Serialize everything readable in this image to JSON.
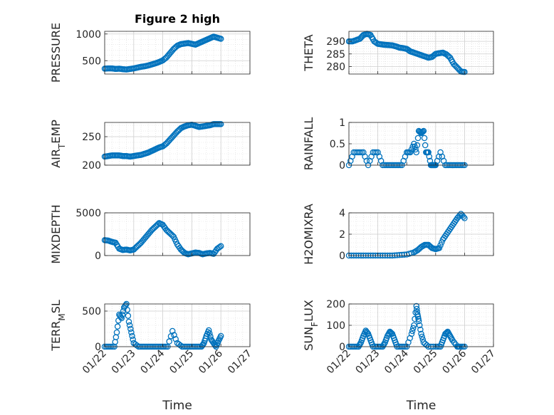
{
  "chart_data": {
    "type": "scatter",
    "title": "Figure 2 high",
    "colors": {
      "marker": "#0072BD",
      "axis": "#262626",
      "grid": "#d9d9d9"
    },
    "date_ticks": [
      "01/22",
      "01/23",
      "01/24",
      "01/25",
      "01/26",
      "01/27"
    ],
    "date_tick_values": [
      "2000-01-22",
      "2000-01-23",
      "2000-01-24",
      "2000-01-25",
      "2000-01-26",
      "2000-01-27"
    ],
    "grid": true,
    "panels": [
      {
        "id": "pressure",
        "ylabel": "PRESSURE",
        "ylim": [
          250,
          1050
        ],
        "yticks": [
          500,
          1000
        ],
        "show_x_ticks": false,
        "series": [
          {
            "x": [
              "2000-01-22T00",
              "2000-01-22T03",
              "2000-01-22T06",
              "2000-01-22T09",
              "2000-01-22T12",
              "2000-01-22T15",
              "2000-01-22T18",
              "2000-01-22T21",
              "2000-01-23T00",
              "2000-01-23T03",
              "2000-01-23T06",
              "2000-01-23T09",
              "2000-01-23T12",
              "2000-01-23T15",
              "2000-01-23T18",
              "2000-01-23T21",
              "2000-01-24T00",
              "2000-01-24T03",
              "2000-01-24T06",
              "2000-01-24T09",
              "2000-01-24T12",
              "2000-01-24T15",
              "2000-01-24T18",
              "2000-01-24T21",
              "2000-01-25T00",
              "2000-01-25T03",
              "2000-01-25T06",
              "2000-01-25T09",
              "2000-01-25T12",
              "2000-01-25T15",
              "2000-01-25T18",
              "2000-01-25T21",
              "2000-01-26T00"
            ],
            "y": [
              350,
              355,
              355,
              345,
              350,
              340,
              335,
              345,
              355,
              370,
              385,
              395,
              410,
              430,
              450,
              475,
              505,
              560,
              640,
              720,
              780,
              810,
              820,
              830,
              815,
              800,
              830,
              860,
              890,
              920,
              950,
              930,
              910
            ]
          }
        ]
      },
      {
        "id": "theta",
        "ylabel": "THETA",
        "ylim": [
          277,
          294
        ],
        "yticks": [
          280,
          285,
          290
        ],
        "show_x_ticks": false,
        "series": [
          {
            "x": [
              "2000-01-22T00",
              "2000-01-22T03",
              "2000-01-22T06",
              "2000-01-22T09",
              "2000-01-22T12",
              "2000-01-22T15",
              "2000-01-22T18",
              "2000-01-22T21",
              "2000-01-23T00",
              "2000-01-23T03",
              "2000-01-23T06",
              "2000-01-23T09",
              "2000-01-23T12",
              "2000-01-23T15",
              "2000-01-23T18",
              "2000-01-23T21",
              "2000-01-24T00",
              "2000-01-24T03",
              "2000-01-24T06",
              "2000-01-24T09",
              "2000-01-24T12",
              "2000-01-24T15",
              "2000-01-24T18",
              "2000-01-24T21",
              "2000-01-25T00",
              "2000-01-25T03",
              "2000-01-25T06",
              "2000-01-25T09",
              "2000-01-25T12",
              "2000-01-25T15",
              "2000-01-25T18",
              "2000-01-25T21",
              "2000-01-26T00"
            ],
            "y": [
              290,
              290,
              290.5,
              291,
              292.5,
              293,
              292.5,
              290,
              289,
              288.8,
              288.6,
              288.5,
              288.4,
              288,
              287.5,
              287.3,
              287,
              286,
              285.5,
              285,
              284.5,
              284,
              283.5,
              283.8,
              285,
              285.3,
              285.5,
              284.8,
              283.5,
              281,
              279.5,
              278,
              277.8
            ]
          }
        ]
      },
      {
        "id": "air_temp",
        "ylabel": "AIR_TEMP",
        "ylim": [
          200,
          275
        ],
        "yticks": [
          200,
          250
        ],
        "show_x_ticks": false,
        "series": [
          {
            "x": [
              "2000-01-22T00",
              "2000-01-22T03",
              "2000-01-22T06",
              "2000-01-22T09",
              "2000-01-22T12",
              "2000-01-22T15",
              "2000-01-22T18",
              "2000-01-22T21",
              "2000-01-23T00",
              "2000-01-23T03",
              "2000-01-23T06",
              "2000-01-23T09",
              "2000-01-23T12",
              "2000-01-23T15",
              "2000-01-23T18",
              "2000-01-23T21",
              "2000-01-24T00",
              "2000-01-24T03",
              "2000-01-24T06",
              "2000-01-24T09",
              "2000-01-24T12",
              "2000-01-24T15",
              "2000-01-24T18",
              "2000-01-24T21",
              "2000-01-25T00",
              "2000-01-25T03",
              "2000-01-25T06",
              "2000-01-25T09",
              "2000-01-25T12",
              "2000-01-25T15",
              "2000-01-25T18",
              "2000-01-25T21",
              "2000-01-26T00"
            ],
            "y": [
              215,
              216,
              217,
              217,
              217,
              216,
              216,
              215,
              216,
              217,
              218,
              220,
              222,
              225,
              228,
              231,
              233,
              238,
              245,
              252,
              259,
              265,
              268,
              270,
              271,
              269,
              267,
              268,
              269,
              270,
              272,
              272,
              272
            ]
          }
        ]
      },
      {
        "id": "rainfall",
        "ylabel": "RAINFALL",
        "ylim": [
          0,
          1
        ],
        "yticks": [
          0,
          0.5,
          1
        ],
        "show_x_ticks": false,
        "series": [
          {
            "x": [
              "2000-01-22T00",
              "2000-01-22T04",
              "2000-01-22T08",
              "2000-01-22T12",
              "2000-01-22T16",
              "2000-01-22T20",
              "2000-01-23T00",
              "2000-01-23T04",
              "2000-01-23T08",
              "2000-01-23T12",
              "2000-01-23T16",
              "2000-01-23T20",
              "2000-01-24T00",
              "2000-01-24T03",
              "2000-01-24T06",
              "2000-01-24T08",
              "2000-01-24T10",
              "2000-01-24T12",
              "2000-01-24T14",
              "2000-01-24T16",
              "2000-01-24T18",
              "2000-01-24T20",
              "2000-01-24T22",
              "2000-01-25T00",
              "2000-01-25T04",
              "2000-01-25T08",
              "2000-01-25T12",
              "2000-01-25T16",
              "2000-01-25T20",
              "2000-01-26T00"
            ],
            "y": [
              0,
              0.3,
              0.3,
              0.3,
              0,
              0.3,
              0.3,
              0,
              0,
              0,
              0,
              0,
              0.3,
              0.3,
              0.5,
              0.3,
              0.8,
              0.75,
              0.8,
              0.3,
              0.3,
              0,
              0,
              0,
              0.3,
              0,
              0,
              0,
              0,
              0
            ]
          }
        ]
      },
      {
        "id": "mixdepth",
        "ylabel": "MIXDEPTH",
        "ylim": [
          0,
          5000
        ],
        "yticks": [
          0,
          5000
        ],
        "show_x_ticks": false,
        "series": [
          {
            "x": [
              "2000-01-22T00",
              "2000-01-22T03",
              "2000-01-22T06",
              "2000-01-22T09",
              "2000-01-22T12",
              "2000-01-22T15",
              "2000-01-22T18",
              "2000-01-22T21",
              "2000-01-23T00",
              "2000-01-23T03",
              "2000-01-23T06",
              "2000-01-23T09",
              "2000-01-23T12",
              "2000-01-23T15",
              "2000-01-23T18",
              "2000-01-23T21",
              "2000-01-24T00",
              "2000-01-24T03",
              "2000-01-24T06",
              "2000-01-24T09",
              "2000-01-24T12",
              "2000-01-24T15",
              "2000-01-24T18",
              "2000-01-24T21",
              "2000-01-25T00",
              "2000-01-25T03",
              "2000-01-25T06",
              "2000-01-25T09",
              "2000-01-25T12",
              "2000-01-25T15",
              "2000-01-25T18",
              "2000-01-25T21",
              "2000-01-26T00"
            ],
            "y": [
              1800,
              1750,
              1600,
              1500,
              800,
              650,
              700,
              600,
              700,
              1100,
              1500,
              2000,
              2500,
              3000,
              3400,
              3800,
              3600,
              3000,
              2600,
              2200,
              1300,
              700,
              300,
              150,
              250,
              350,
              300,
              150,
              250,
              300,
              200,
              800,
              1100
            ]
          }
        ]
      },
      {
        "id": "h2omixra",
        "ylabel": "H2OMIXRA",
        "ylim": [
          0,
          4
        ],
        "yticks": [
          0,
          2,
          4
        ],
        "show_x_ticks": false,
        "series": [
          {
            "x": [
              "2000-01-22T00",
              "2000-01-22T06",
              "2000-01-22T12",
              "2000-01-22T18",
              "2000-01-23T00",
              "2000-01-23T06",
              "2000-01-23T12",
              "2000-01-23T18",
              "2000-01-24T00",
              "2000-01-24T06",
              "2000-01-24T09",
              "2000-01-24T12",
              "2000-01-24T15",
              "2000-01-24T18",
              "2000-01-24T21",
              "2000-01-25T00",
              "2000-01-25T03",
              "2000-01-25T06",
              "2000-01-25T09",
              "2000-01-25T12",
              "2000-01-25T15",
              "2000-01-25T18",
              "2000-01-25T21",
              "2000-01-26T00"
            ],
            "y": [
              0,
              0,
              0,
              0,
              0,
              0,
              0,
              0.05,
              0.1,
              0.3,
              0.5,
              0.8,
              1,
              1,
              0.7,
              0.6,
              0.7,
              1.5,
              2,
              2.5,
              3,
              3.5,
              3.9,
              3.5
            ]
          }
        ]
      },
      {
        "id": "terr_msl",
        "ylabel": "TERR_MSL",
        "ylim": [
          0,
          600
        ],
        "yticks": [
          0,
          500
        ],
        "show_x_ticks": true,
        "series": [
          {
            "x": [
              "2000-01-22T00",
              "2000-01-22T04",
              "2000-01-22T08",
              "2000-01-22T10",
              "2000-01-22T12",
              "2000-01-22T14",
              "2000-01-22T16",
              "2000-01-22T18",
              "2000-01-22T20",
              "2000-01-22T22",
              "2000-01-23T00",
              "2000-01-23T04",
              "2000-01-23T08",
              "2000-01-23T12",
              "2000-01-23T16",
              "2000-01-23T20",
              "2000-01-24T00",
              "2000-01-24T04",
              "2000-01-24T08",
              "2000-01-24T12",
              "2000-01-24T16",
              "2000-01-24T20",
              "2000-01-25T00",
              "2000-01-25T04",
              "2000-01-25T08",
              "2000-01-25T10",
              "2000-01-25T12",
              "2000-01-25T14",
              "2000-01-25T16",
              "2000-01-25T18",
              "2000-01-25T20",
              "2000-01-25T22",
              "2000-01-26T00"
            ],
            "y": [
              0,
              0,
              0,
              200,
              450,
              400,
              550,
              600,
              350,
              200,
              50,
              0,
              0,
              0,
              0,
              0,
              0,
              0,
              220,
              50,
              0,
              0,
              0,
              0,
              0,
              50,
              150,
              230,
              100,
              50,
              0,
              80,
              150
            ]
          }
        ]
      },
      {
        "id": "sun_flux",
        "ylabel": "SUN_FLUX",
        "ylim": [
          0,
          200
        ],
        "yticks": [
          0,
          100,
          200
        ],
        "show_x_ticks": true,
        "series": [
          {
            "x": [
              "2000-01-22T00",
              "2000-01-22T04",
              "2000-01-22T08",
              "2000-01-22T10",
              "2000-01-22T12",
              "2000-01-22T14",
              "2000-01-22T16",
              "2000-01-22T18",
              "2000-01-22T20",
              "2000-01-23T00",
              "2000-01-23T04",
              "2000-01-23T06",
              "2000-01-23T08",
              "2000-01-23T10",
              "2000-01-23T12",
              "2000-01-23T14",
              "2000-01-23T16",
              "2000-01-23T20",
              "2000-01-24T00",
              "2000-01-24T04",
              "2000-01-24T06",
              "2000-01-24T08",
              "2000-01-24T09",
              "2000-01-24T10",
              "2000-01-24T12",
              "2000-01-24T14",
              "2000-01-24T18",
              "2000-01-25T00",
              "2000-01-25T04",
              "2000-01-25T06",
              "2000-01-25T08",
              "2000-01-25T10",
              "2000-01-25T12",
              "2000-01-25T14",
              "2000-01-25T18",
              "2000-01-25T20",
              "2000-01-26T00"
            ],
            "y": [
              0,
              0,
              0,
              20,
              50,
              75,
              60,
              30,
              0,
              0,
              0,
              20,
              50,
              70,
              60,
              30,
              0,
              0,
              0,
              60,
              100,
              190,
              150,
              120,
              60,
              20,
              0,
              0,
              0,
              30,
              60,
              70,
              50,
              30,
              0,
              0,
              0
            ]
          }
        ]
      }
    ]
  }
}
